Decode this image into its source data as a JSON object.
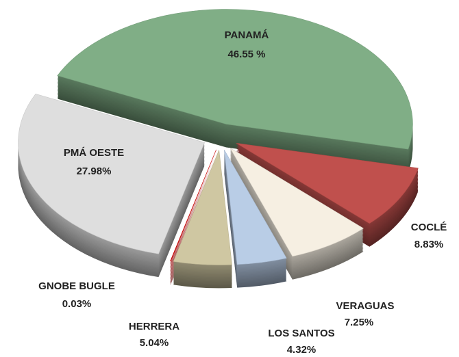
{
  "chart_data": {
    "type": "pie",
    "categories": [
      "PANAMÁ",
      "COCLÉ",
      "VERAGUAS",
      "LOS SANTOS",
      "HERRERA",
      "GNOBE BUGLE",
      "PMÁ OESTE"
    ],
    "values": [
      46.55,
      8.83,
      7.25,
      4.32,
      5.04,
      0.03,
      27.98
    ],
    "value_labels": [
      "46.55 %",
      "8.83%",
      "7.25%",
      "4.32%",
      "5.04%",
      "0.03%",
      "27.98%"
    ],
    "colors": [
      "#80ae86",
      "#c0504d",
      "#f6efe2",
      "#b9cde6",
      "#cfc7a2",
      "#e00000",
      "#dedede"
    ]
  }
}
